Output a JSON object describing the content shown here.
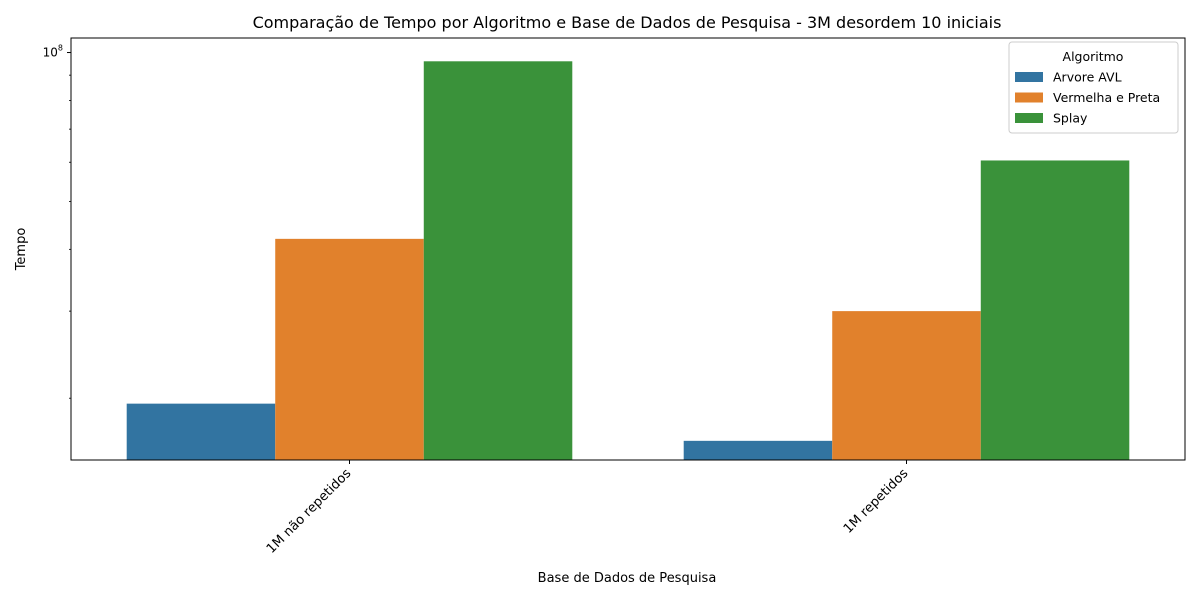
{
  "chart_data": {
    "type": "bar",
    "title": "Comparação de Tempo por Algoritmo e Base de Dados de Pesquisa - 3M desordem 10 iniciais",
    "xlabel": "Base de Dados de Pesquisa",
    "ylabel": "Tempo",
    "yscale": "log",
    "ylim": [
      15000000,
      107000000
    ],
    "yticks": [
      {
        "value": 100000000,
        "base": "10",
        "exp": "8"
      }
    ],
    "categories": [
      "1M não repetidos",
      "1M repetidos"
    ],
    "legend": {
      "title": "Algoritmo",
      "position": "top-right"
    },
    "series": [
      {
        "name": "Arvore AVL",
        "color": "#3274a1",
        "values": [
          19500000,
          16400000
        ]
      },
      {
        "name": "Vermelha e Preta",
        "color": "#e1812c",
        "values": [
          42000000,
          30000000
        ]
      },
      {
        "name": "Splay",
        "color": "#3a923a",
        "values": [
          96000000,
          60500000
        ]
      }
    ],
    "grid": false
  }
}
